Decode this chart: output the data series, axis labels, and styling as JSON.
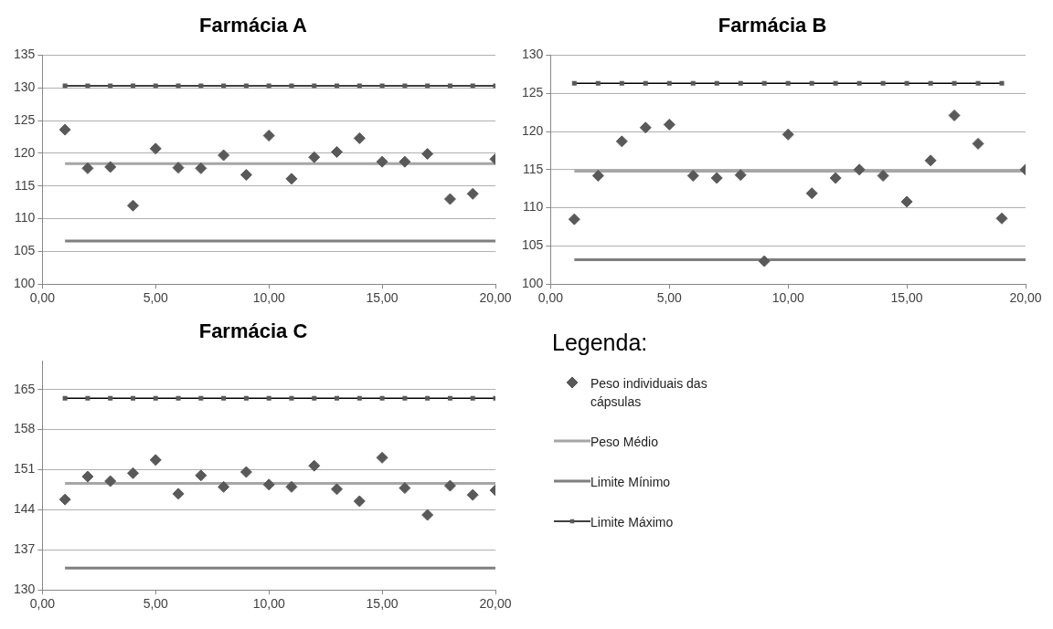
{
  "chart_data": [
    {
      "type": "scatter",
      "title": "Farmácia A",
      "xlim": [
        0,
        20
      ],
      "xticks": [
        {
          "value": 0,
          "label": "0,00"
        },
        {
          "value": 5,
          "label": "5,00"
        },
        {
          "value": 10,
          "label": "10,00"
        },
        {
          "value": 15,
          "label": "15,00"
        },
        {
          "value": 20,
          "label": "20,00"
        }
      ],
      "ylim": [
        100,
        135
      ],
      "yticks": [
        100,
        105,
        110,
        115,
        120,
        125,
        130,
        135
      ],
      "grid": "y",
      "series": [
        {
          "type": "scatter",
          "color": "#595959",
          "marker": "diamond",
          "x": [
            1,
            2,
            3,
            4,
            5,
            6,
            7,
            8,
            9,
            10,
            11,
            12,
            13,
            14,
            15,
            16,
            17,
            18,
            19,
            20
          ],
          "values": [
            123.6,
            117.7,
            117.9,
            112.0,
            120.7,
            117.8,
            117.7,
            119.7,
            116.7,
            122.7,
            116.1,
            119.4,
            120.2,
            122.3,
            118.7,
            118.7,
            119.9,
            113.0,
            113.8,
            119.1
          ]
        },
        {
          "type": "line",
          "color": "#a6a6a6",
          "marker": "none",
          "x": [
            1,
            20
          ],
          "values": [
            118.4,
            118.4
          ]
        },
        {
          "type": "line",
          "color": "#7f7f7f",
          "marker": "none",
          "x": [
            1,
            20
          ],
          "values": [
            106.6,
            106.6
          ]
        },
        {
          "type": "line",
          "color": "#000000",
          "marker": "square",
          "x": [
            1,
            2,
            3,
            4,
            5,
            6,
            7,
            8,
            9,
            10,
            11,
            12,
            13,
            14,
            15,
            16,
            17,
            18,
            19,
            20
          ],
          "values": [
            130.3,
            130.3,
            130.3,
            130.3,
            130.3,
            130.3,
            130.3,
            130.3,
            130.3,
            130.3,
            130.3,
            130.3,
            130.3,
            130.3,
            130.3,
            130.3,
            130.3,
            130.3,
            130.3,
            130.3
          ]
        }
      ]
    },
    {
      "type": "scatter",
      "title": "Farmácia B",
      "xlim": [
        0,
        20
      ],
      "xticks": [
        {
          "value": 0,
          "label": "0,00"
        },
        {
          "value": 5,
          "label": "5,00"
        },
        {
          "value": 10,
          "label": "10,00"
        },
        {
          "value": 15,
          "label": "15,00"
        },
        {
          "value": 20,
          "label": "20,00"
        }
      ],
      "ylim": [
        100,
        130
      ],
      "yticks": [
        100,
        105,
        110,
        115,
        120,
        125,
        130
      ],
      "grid": "y",
      "series": [
        {
          "type": "scatter",
          "color": "#595959",
          "marker": "diamond",
          "x": [
            1,
            2,
            3,
            4,
            5,
            6,
            7,
            8,
            9,
            10,
            11,
            12,
            13,
            14,
            15,
            16,
            17,
            18,
            19,
            20
          ],
          "values": [
            108.5,
            114.2,
            118.7,
            120.5,
            120.9,
            114.2,
            113.9,
            114.3,
            103.0,
            119.6,
            111.9,
            113.9,
            115.0,
            114.2,
            110.8,
            116.2,
            122.1,
            118.4,
            108.6,
            115.0
          ]
        },
        {
          "type": "line",
          "color": "#a6a6a6",
          "marker": "none",
          "x": [
            1,
            20
          ],
          "values": [
            114.8,
            114.8
          ]
        },
        {
          "type": "line",
          "color": "#7f7f7f",
          "marker": "none",
          "x": [
            1,
            20
          ],
          "values": [
            103.2,
            103.2
          ]
        },
        {
          "type": "line",
          "color": "#000000",
          "marker": "square",
          "x": [
            1,
            2,
            3,
            4,
            5,
            6,
            7,
            8,
            9,
            10,
            11,
            12,
            13,
            14,
            15,
            16,
            17,
            18,
            19
          ],
          "values": [
            126.3,
            126.3,
            126.3,
            126.3,
            126.3,
            126.3,
            126.3,
            126.3,
            126.3,
            126.3,
            126.3,
            126.3,
            126.3,
            126.3,
            126.3,
            126.3,
            126.3,
            126.3,
            126.3
          ]
        }
      ]
    },
    {
      "type": "scatter",
      "title": "Farmácia C",
      "xlim": [
        0,
        20
      ],
      "xticks": [
        {
          "value": 0,
          "label": "0,00"
        },
        {
          "value": 5,
          "label": "5,00"
        },
        {
          "value": 10,
          "label": "10,00"
        },
        {
          "value": 15,
          "label": "15,00"
        },
        {
          "value": 20,
          "label": "20,00"
        }
      ],
      "ylim": [
        130,
        170
      ],
      "yticks": [
        130,
        137,
        144,
        151,
        158,
        165
      ],
      "grid": "y",
      "legend": "right",
      "legend_title": "Legenda:",
      "series": [
        {
          "type": "scatter",
          "name": "Peso individuais das cápsulas",
          "color": "#595959",
          "marker": "diamond",
          "x": [
            1,
            2,
            3,
            4,
            5,
            6,
            7,
            8,
            9,
            10,
            11,
            12,
            13,
            14,
            15,
            16,
            17,
            18,
            19,
            20
          ],
          "values": [
            145.8,
            149.8,
            149.0,
            150.4,
            152.7,
            146.8,
            150.0,
            148.0,
            150.6,
            148.4,
            148.0,
            151.7,
            147.6,
            145.5,
            153.1,
            147.8,
            143.1,
            148.2,
            146.6,
            147.4
          ]
        },
        {
          "type": "line",
          "name": "Peso Médio",
          "color": "#a6a6a6",
          "marker": "none",
          "x": [
            1,
            20
          ],
          "values": [
            148.6,
            148.6
          ]
        },
        {
          "type": "line",
          "name": "Limite Mínimo",
          "color": "#7f7f7f",
          "marker": "none",
          "x": [
            1,
            20
          ],
          "values": [
            133.8,
            133.8
          ]
        },
        {
          "type": "line",
          "name": "Limite Máximo",
          "color": "#000000",
          "marker": "square",
          "x": [
            1,
            2,
            3,
            4,
            5,
            6,
            7,
            8,
            9,
            10,
            11,
            12,
            13,
            14,
            15,
            16,
            17,
            18,
            19,
            20
          ],
          "values": [
            163.5,
            163.5,
            163.5,
            163.5,
            163.5,
            163.5,
            163.5,
            163.5,
            163.5,
            163.5,
            163.5,
            163.5,
            163.5,
            163.5,
            163.5,
            163.5,
            163.5,
            163.5,
            163.5,
            163.5
          ]
        }
      ]
    }
  ]
}
